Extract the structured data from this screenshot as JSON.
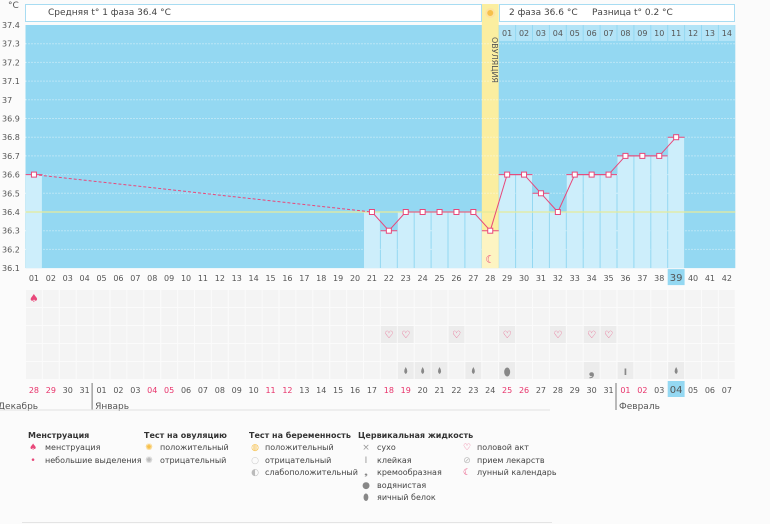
{
  "header": {
    "unit": "°C",
    "phase1": "Средняя t° 1 фаза 36.4 °C",
    "phase2": "2 фаза 36.6 °C",
    "diff": "Разница t° 0.2 °C",
    "ovulation": "ОВУЛЯЦИЯ"
  },
  "chart_data": {
    "type": "line",
    "title": "",
    "ylabel": "°C",
    "ylim": [
      36.1,
      37.4
    ],
    "yticks": [
      "37.4",
      "37.3",
      "37.2",
      "37.1",
      "37",
      "36.9",
      "36.8",
      "36.7",
      "36.6",
      "36.5",
      "36.4",
      "36.3",
      "36.2",
      "36.1"
    ],
    "cycle_days": [
      "01",
      "02",
      "03",
      "04",
      "05",
      "06",
      "07",
      "08",
      "09",
      "10",
      "11",
      "12",
      "13",
      "14",
      "15",
      "16",
      "17",
      "18",
      "19",
      "20",
      "21",
      "22",
      "23",
      "24",
      "25",
      "26",
      "27",
      "28",
      "29",
      "30",
      "31",
      "32",
      "33",
      "34",
      "35",
      "36",
      "37",
      "38",
      "39",
      "40",
      "41",
      "42"
    ],
    "post_ovulation_days": [
      "01",
      "02",
      "03",
      "04",
      "05",
      "06",
      "07",
      "08",
      "09",
      "10",
      "11",
      "12",
      "13",
      "14"
    ],
    "ovulation_day": 28,
    "current_day": 39,
    "average_line": 36.4,
    "temperatures": [
      [
        1,
        36.6
      ],
      [
        21,
        36.4
      ],
      [
        22,
        36.3
      ],
      [
        23,
        36.4
      ],
      [
        24,
        36.4
      ],
      [
        25,
        36.4
      ],
      [
        26,
        36.4
      ],
      [
        27,
        36.4
      ],
      [
        28,
        36.3
      ],
      [
        29,
        36.6
      ],
      [
        30,
        36.6
      ],
      [
        31,
        36.5
      ],
      [
        32,
        36.4
      ],
      [
        33,
        36.6
      ],
      [
        34,
        36.6
      ],
      [
        35,
        36.6
      ],
      [
        36,
        36.7
      ],
      [
        37,
        36.7
      ],
      [
        38,
        36.7
      ],
      [
        39,
        36.8
      ]
    ],
    "dates": [
      "28",
      "29",
      "30",
      "31",
      "01",
      "02",
      "03",
      "04",
      "05",
      "06",
      "07",
      "08",
      "09",
      "10",
      "11",
      "12",
      "13",
      "14",
      "15",
      "16",
      "17",
      "18",
      "19",
      "20",
      "21",
      "22",
      "23",
      "24",
      "25",
      "26",
      "27",
      "28",
      "29",
      "30",
      "31",
      "01",
      "02",
      "03",
      "04",
      "05",
      "06",
      "07"
    ],
    "weekend_days": [
      1,
      2,
      8,
      9,
      15,
      16,
      22,
      23,
      29,
      30,
      36,
      37
    ],
    "months": [
      {
        "label": "Декабрь",
        "col": 1
      },
      {
        "label": "Январь",
        "col": 5
      },
      {
        "label": "Февраль",
        "col": 36
      }
    ],
    "menstruation_days": [
      1
    ],
    "intercourse_days": [
      22,
      23,
      26,
      29,
      32,
      34,
      35
    ],
    "moon_day": 28,
    "fluid": [
      [
        23,
        "водянистая"
      ],
      [
        24,
        "водянистая"
      ],
      [
        25,
        "водянистая"
      ],
      [
        27,
        "водянистая"
      ],
      [
        29,
        "яичный белок"
      ],
      [
        34,
        "кремообразная"
      ],
      [
        36,
        "клейкая"
      ],
      [
        39,
        "водянистая"
      ]
    ]
  },
  "legend": {
    "menstr": {
      "title": "Менструация",
      "items": [
        "менструация",
        "небольшие выделения"
      ]
    },
    "ovtest": {
      "title": "Тест на овуляцию",
      "items": [
        "положительный",
        "отрицательный"
      ]
    },
    "pregtest": {
      "title": "Тест на беременность",
      "items": [
        "положительный",
        "отрицательный",
        "слабоположительный"
      ]
    },
    "fluid": {
      "title": "Цервикальная жидкость",
      "items": [
        "сухо",
        "клейкая",
        "кремообразная",
        "водянистая",
        "яичный белок"
      ]
    },
    "other": {
      "items": [
        "половой акт",
        "прием лекарств",
        "лунный календарь"
      ]
    }
  },
  "colors": {
    "plot": "#94d8f2",
    "bar": "#cdeefb",
    "line": "#e8487a",
    "ovulation": "#fbeea0",
    "weekend": "#e8336b"
  }
}
